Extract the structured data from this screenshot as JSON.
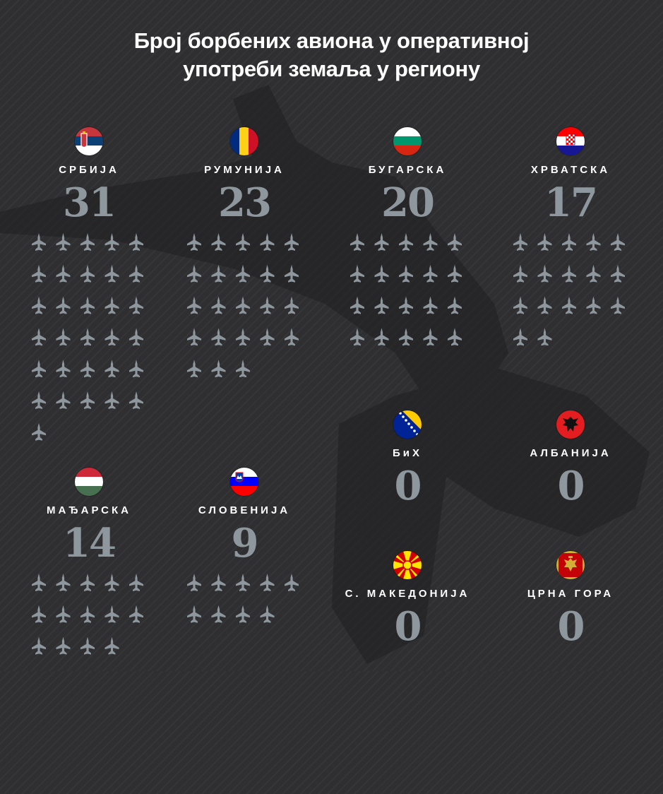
{
  "title_line1": "Број борбених авиона у оперативној",
  "title_line2": "употреби земаља у региону",
  "colors": {
    "background": "#2f2f31",
    "title": "#ffffff",
    "label": "#ffffff",
    "number": "#8d979d",
    "jet": "#8d979d"
  },
  "chart_data": {
    "type": "table",
    "title": "Број борбених авиона у оперативној употреби земаља у региону",
    "categories": [
      "СРБИЈА",
      "РУМУНИЈА",
      "БУГАРСКА",
      "ХРВАТСКА",
      "МАЂАРСКА",
      "СЛОВЕНИЈА",
      "БиХ",
      "АЛБАНИЈА",
      "С. МАКЕДОНИЈА",
      "ЦРНА ГОРА"
    ],
    "values": [
      31,
      23,
      20,
      17,
      14,
      9,
      0,
      0,
      0,
      0
    ]
  },
  "countries": [
    {
      "name": "СРБИЈА",
      "count": "31",
      "flag": "serbia-flag-icon"
    },
    {
      "name": "РУМУНИЈА",
      "count": "23",
      "flag": "romania-flag-icon"
    },
    {
      "name": "БУГАРСКА",
      "count": "20",
      "flag": "bulgaria-flag-icon"
    },
    {
      "name": "ХРВАТСКА",
      "count": "17",
      "flag": "croatia-flag-icon"
    },
    {
      "name": "МАЂАРСКА",
      "count": "14",
      "flag": "hungary-flag-icon"
    },
    {
      "name": "СЛОВЕНИЈА",
      "count": "9",
      "flag": "slovenia-flag-icon"
    },
    {
      "name": "БиХ",
      "count": "0",
      "flag": "bih-flag-icon"
    },
    {
      "name": "АЛБАНИЈА",
      "count": "0",
      "flag": "albania-flag-icon"
    },
    {
      "name": "С. МАКЕДОНИЈА",
      "count": "0",
      "flag": "macedonia-flag-icon"
    },
    {
      "name": "ЦРНА ГОРА",
      "count": "0",
      "flag": "montenegro-flag-icon"
    }
  ],
  "icons": {
    "jet": "fighter-jet-icon",
    "background": "fighter-jet-silhouette"
  }
}
